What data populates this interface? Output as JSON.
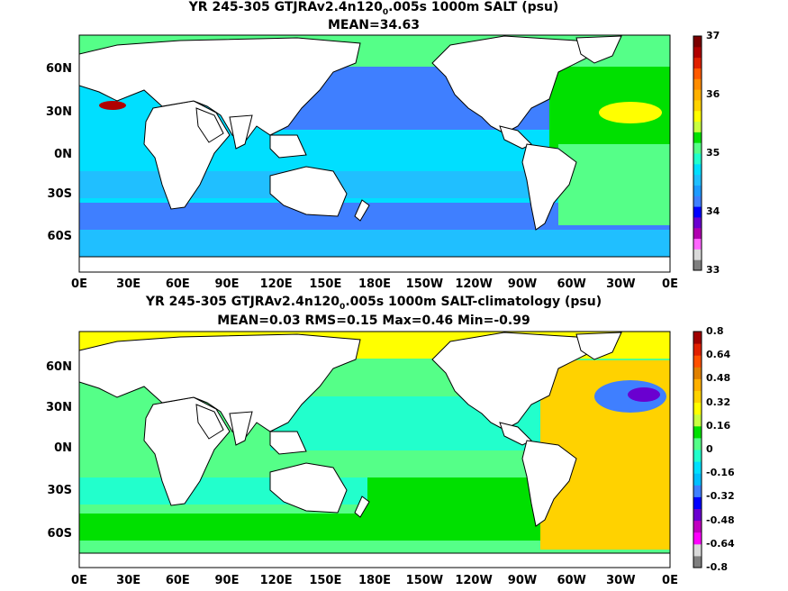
{
  "panels": [
    {
      "title_prefix": "YR 245-305 GTJRAv2.4n120",
      "title_sub": "0",
      "title_suffix": ".005s 1000m SALT (psu)",
      "stats": "MEAN=34.63",
      "colorbar_labels": [
        "37",
        "36",
        "35",
        "34",
        "33"
      ]
    },
    {
      "title_prefix": "YR 245-305 GTJRAv2.4n120",
      "title_sub": "0",
      "title_suffix": ".005s 1000m SALT-climatology (psu)",
      "stats": "MEAN=0.03   RMS=0.15   Max=0.46   Min=-0.99",
      "colorbar_labels": [
        "0.8",
        "0.64",
        "0.48",
        "0.32",
        "0.16",
        "0",
        "-0.16",
        "-0.32",
        "-0.48",
        "-0.64",
        "-0.8"
      ]
    }
  ],
  "lat_labels": [
    "60N",
    "30N",
    "0N",
    "30S",
    "60S"
  ],
  "lon_labels": [
    "0E",
    "30E",
    "60E",
    "90E",
    "120E",
    "150E",
    "180E",
    "150W",
    "120W",
    "90W",
    "60W",
    "30W",
    "0E"
  ],
  "colorbar1_colors": [
    "#7f7f7f",
    "#d9d9d9",
    "#ff66ff",
    "#b000b0",
    "#6a00d0",
    "#0000ff",
    "#3f7fff",
    "#1e9bff",
    "#20bfff",
    "#00dfff",
    "#22ffcc",
    "#55ff88",
    "#00e000",
    "#c8ff40",
    "#ffff00",
    "#ffd200",
    "#ffb000",
    "#ff8c00",
    "#ff5a00",
    "#e02000",
    "#b00000",
    "#7a0000"
  ],
  "colorbar2_colors": [
    "#7f7f7f",
    "#d9d9d9",
    "#ff00ff",
    "#c000c0",
    "#6a00d0",
    "#0000ff",
    "#3f7fff",
    "#00bfff",
    "#00e0ff",
    "#22ffcc",
    "#55ff88",
    "#00e000",
    "#c8ff40",
    "#ffff00",
    "#ffd200",
    "#ffb000",
    "#e08000",
    "#ff5000",
    "#e02000",
    "#a00000"
  ]
}
